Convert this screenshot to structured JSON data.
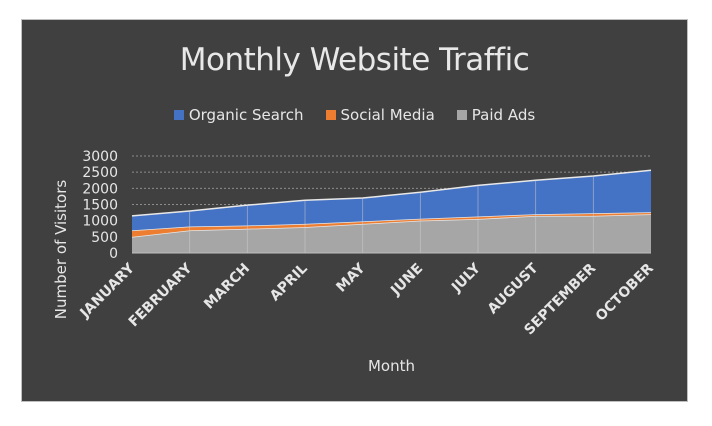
{
  "chart_data": {
    "type": "area",
    "stacked": true,
    "title": "Monthly Website Traffic",
    "xlabel": "Month",
    "ylabel": "Number of Visitors",
    "categories": [
      "JANUARY",
      "FEBRUARY",
      "MARCH",
      "APRIL",
      "MAY",
      "JUNE",
      "JULY",
      "AUGUST",
      "SEPTEMBER",
      "OCTOBER"
    ],
    "ylim": [
      0,
      3000
    ],
    "yticks": [
      "0",
      "500",
      "1000",
      "1500",
      "2000",
      "2500",
      "3000"
    ],
    "grid": true,
    "legend_position": "top",
    "series": [
      {
        "name": "Paid Ads",
        "color": "#a6a6a6",
        "values": [
          500,
          700,
          750,
          800,
          900,
          1000,
          1050,
          1150,
          1150,
          1200
        ]
      },
      {
        "name": "Social Media",
        "color": "#ed7d31",
        "values": [
          200,
          120,
          100,
          100,
          80,
          60,
          80,
          50,
          80,
          60
        ]
      },
      {
        "name": "Organic Search",
        "color": "#4472c4",
        "values": [
          450,
          480,
          630,
          730,
          720,
          820,
          960,
          1050,
          1150,
          1300
        ]
      }
    ],
    "legend_order": [
      "Organic Search",
      "Social Media",
      "Paid Ads"
    ]
  }
}
